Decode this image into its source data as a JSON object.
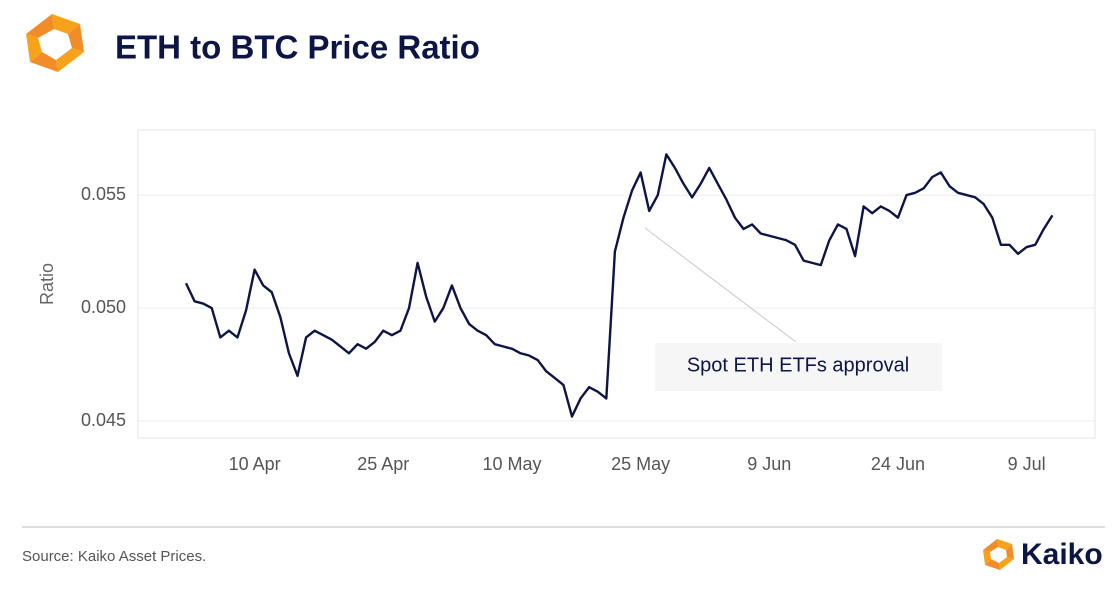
{
  "chart_data": {
    "type": "line",
    "title": "ETH to BTC Price Ratio",
    "y_label": "Ratio",
    "annotation": "Spot ETH ETFs approval",
    "source": "Source: Kaiko Asset Prices.",
    "brand": "Kaiko",
    "color": "#0d1546",
    "grid": true,
    "ylim": [
      0.04425,
      0.05788
    ],
    "yticks": [
      0.045,
      {
        "value": 0.05,
        "label": "0.050"
      },
      0.055
    ],
    "categories": [
      null,
      null,
      null,
      null,
      null,
      null,
      null,
      null,
      "10 Apr",
      null,
      null,
      null,
      null,
      null,
      null,
      null,
      null,
      null,
      null,
      null,
      null,
      null,
      null,
      "25 Apr",
      null,
      null,
      null,
      null,
      null,
      null,
      null,
      null,
      null,
      null,
      null,
      null,
      null,
      null,
      "10 May",
      null,
      null,
      null,
      null,
      null,
      null,
      null,
      null,
      null,
      null,
      null,
      null,
      null,
      null,
      "25 May",
      null,
      null,
      null,
      null,
      null,
      null,
      null,
      null,
      null,
      null,
      null,
      null,
      null,
      null,
      "9 Jun",
      null,
      null,
      null,
      null,
      null,
      null,
      null,
      null,
      null,
      null,
      null,
      null,
      null,
      null,
      "24 Jun",
      null,
      null,
      null,
      null,
      null,
      null,
      null,
      null,
      null,
      null,
      null,
      null,
      null,
      null,
      "9 Jul",
      null,
      null,
      null
    ],
    "values": [
      0.0511,
      0.0503,
      0.0502,
      0.05,
      0.0487,
      0.049,
      0.0487,
      0.0499,
      0.0517,
      0.051,
      0.0507,
      0.0496,
      0.048,
      0.047,
      0.0487,
      0.049,
      0.0488,
      0.0486,
      0.0483,
      0.048,
      0.0484,
      0.0482,
      0.0485,
      0.049,
      0.0488,
      0.049,
      0.05,
      0.052,
      0.0505,
      0.0494,
      0.05,
      0.051,
      0.05,
      0.0493,
      0.049,
      0.0488,
      0.0484,
      0.0483,
      0.0482,
      0.048,
      0.0479,
      0.0477,
      0.0472,
      0.0469,
      0.0466,
      0.0452,
      0.046,
      0.0465,
      0.0463,
      0.046,
      0.0525,
      0.054,
      0.0552,
      0.056,
      0.0543,
      0.055,
      0.0568,
      0.0562,
      0.0555,
      0.0549,
      0.0555,
      0.0562,
      0.0555,
      0.0548,
      0.054,
      0.0535,
      0.0537,
      0.0533,
      0.0532,
      0.0531,
      0.053,
      0.0528,
      0.0521,
      0.052,
      0.0519,
      0.053,
      0.0537,
      0.0535,
      0.0523,
      0.0545,
      0.0542,
      0.0545,
      0.0543,
      0.054,
      0.055,
      0.0551,
      0.0553,
      0.0558,
      0.056,
      0.0554,
      0.0551,
      0.055,
      0.0549,
      0.0546,
      0.054,
      0.0528,
      0.0528,
      0.0524,
      0.0527,
      0.0528,
      0.0535,
      0.0541
    ]
  }
}
